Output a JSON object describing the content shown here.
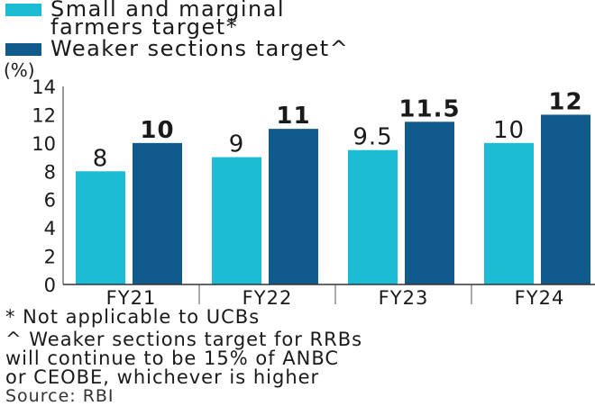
{
  "chart_data": {
    "type": "bar",
    "title": "",
    "ylabel": "(%)",
    "xlabel": "",
    "categories": [
      "FY21",
      "FY22",
      "FY23",
      "FY24"
    ],
    "series": [
      {
        "name": "Small and marginal farmers target*",
        "values": [
          8,
          9,
          9.5,
          10
        ],
        "labels": [
          "8",
          "9",
          "9.5",
          "10"
        ],
        "color": "#1bbcd4"
      },
      {
        "name": "Weaker sections target^",
        "values": [
          10,
          11,
          11.5,
          12
        ],
        "labels": [
          "10",
          "11",
          "11.5",
          "12"
        ],
        "color": "#115a8c"
      }
    ],
    "yticks": [
      0,
      2,
      4,
      6,
      8,
      10,
      12,
      14
    ],
    "ylim": [
      0,
      14
    ],
    "grid": false,
    "legend": "top-left"
  },
  "legend": {
    "item1_line1": "Small and marginal",
    "item1_line2": "farmers target*",
    "item2": "Weaker sections target^"
  },
  "notes": {
    "note1": "* Not applicable to UCBs",
    "note2_line1": "^ Weaker sections target for RRBs",
    "note2_line2": "will continue to be 15% of ANBC",
    "note2_line3": "or CEOBE, whichever is higher",
    "source": "Source: RBI"
  }
}
